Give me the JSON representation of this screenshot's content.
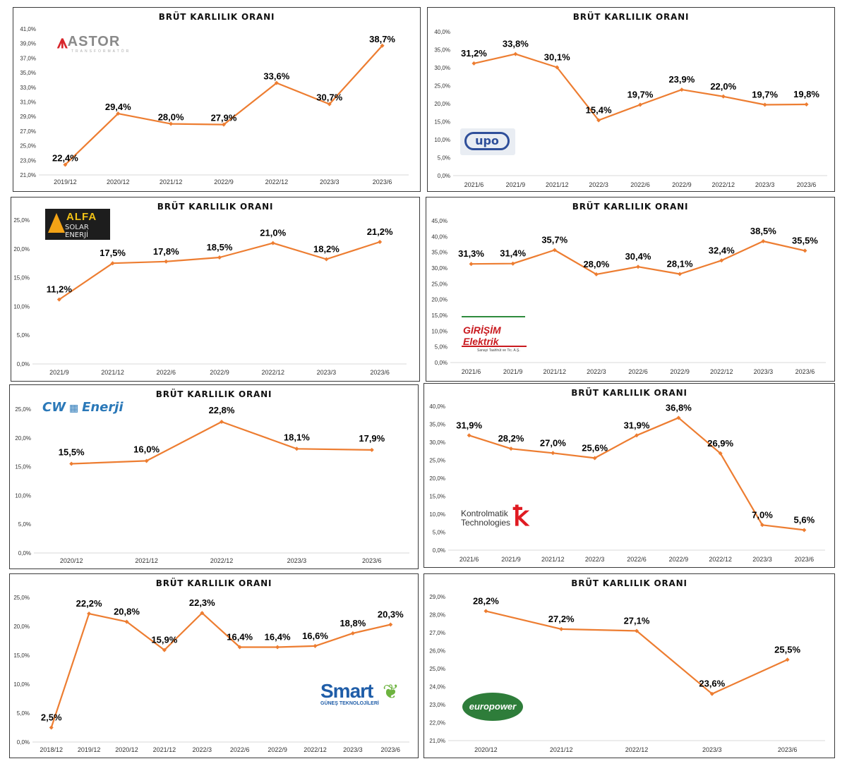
{
  "chart_data": [
    {
      "type": "line",
      "company": "ASTOR",
      "logo_text": "ASTOR",
      "logo_sub": "TRANSFORMATÖR",
      "title": "BRÜT KARLILIK ORANI",
      "categories": [
        "2019/12",
        "2020/12",
        "2021/12",
        "2022/9",
        "2022/12",
        "2023/3",
        "2023/6"
      ],
      "values": [
        22.4,
        29.4,
        28.0,
        27.9,
        33.6,
        30.7,
        38.7
      ],
      "labels": [
        "22,4%",
        "29,4%",
        "28,0%",
        "27,9%",
        "33,6%",
        "30,7%",
        "38,7%"
      ],
      "yticks": [
        "21,0%",
        "23,0%",
        "25,0%",
        "27,0%",
        "29,0%",
        "31,0%",
        "33,0%",
        "35,0%",
        "37,0%",
        "39,0%",
        "41,0%"
      ],
      "ylim": [
        21,
        41
      ],
      "line_color": "#ed7d31"
    },
    {
      "type": "line",
      "company": "UPO",
      "logo_text": "upo",
      "title": "BRÜT KARLILIK ORANI",
      "categories": [
        "2021/6",
        "2021/9",
        "2021/12",
        "2022/3",
        "2022/6",
        "2022/9",
        "2022/12",
        "2023/3",
        "2023/6"
      ],
      "values": [
        31.2,
        33.8,
        30.1,
        15.4,
        19.7,
        23.9,
        22.0,
        19.7,
        19.8
      ],
      "labels": [
        "31,2%",
        "33,8%",
        "30,1%",
        "15,4%",
        "19,7%",
        "23,9%",
        "22,0%",
        "19,7%",
        "19,8%"
      ],
      "yticks": [
        "0,0%",
        "5,0%",
        "10,0%",
        "15,0%",
        "20,0%",
        "25,0%",
        "30,0%",
        "35,0%",
        "40,0%"
      ],
      "ylim": [
        0,
        40
      ],
      "line_color": "#ed7d31"
    },
    {
      "type": "line",
      "company": "ALFA Solar Enerji",
      "logo_text": "ALFA",
      "logo_sub": "SOLAR ENERJİ",
      "title": "BRÜT KARLILIK ORANI",
      "categories": [
        "2021/9",
        "2021/12",
        "2022/6",
        "2022/9",
        "2022/12",
        "2023/3",
        "2023/6"
      ],
      "values": [
        11.2,
        17.5,
        17.8,
        18.5,
        21.0,
        18.2,
        21.2
      ],
      "labels": [
        "11,2%",
        "17,5%",
        "17,8%",
        "18,5%",
        "21,0%",
        "18,2%",
        "21,2%"
      ],
      "yticks": [
        "0,0%",
        "5,0%",
        "10,0%",
        "15,0%",
        "20,0%",
        "25,0%"
      ],
      "ylim": [
        0,
        25
      ],
      "line_color": "#ed7d31"
    },
    {
      "type": "line",
      "company": "Girişim Elektrik",
      "logo_text": "GİRİŞİM Elektrik",
      "logo_sub": "Sanayi Taahhüt ve Tic. A.Ş.",
      "title": "BRÜT KARLILIK ORANI",
      "categories": [
        "2021/6",
        "2021/9",
        "2021/12",
        "2022/3",
        "2022/6",
        "2022/9",
        "2022/12",
        "2023/3",
        "2023/6"
      ],
      "values": [
        31.3,
        31.4,
        35.7,
        28.0,
        30.4,
        28.1,
        32.4,
        38.5,
        35.5
      ],
      "labels": [
        "31,3%",
        "31,4%",
        "35,7%",
        "28,0%",
        "30,4%",
        "28,1%",
        "32,4%",
        "38,5%",
        "35,5%"
      ],
      "yticks": [
        "0,0%",
        "5,0%",
        "10,0%",
        "15,0%",
        "20,0%",
        "25,0%",
        "30,0%",
        "35,0%",
        "40,0%",
        "45,0%"
      ],
      "ylim": [
        0,
        45
      ],
      "line_color": "#ed7d31"
    },
    {
      "type": "line",
      "company": "CW Enerji",
      "logo_text": "CW",
      "logo_sub": "Enerji",
      "title": "BRÜT KARLILIK ORANI",
      "categories": [
        "2020/12",
        "2021/12",
        "2022/12",
        "2023/3",
        "2023/6"
      ],
      "values": [
        15.5,
        16.0,
        22.8,
        18.1,
        17.9
      ],
      "labels": [
        "15,5%",
        "16,0%",
        "22,8%",
        "18,1%",
        "17,9%"
      ],
      "yticks": [
        "0,0%",
        "5,0%",
        "10,0%",
        "15,0%",
        "20,0%",
        "25,0%"
      ],
      "ylim": [
        0,
        25
      ],
      "line_color": "#ed7d31"
    },
    {
      "type": "line",
      "company": "Kontrolmatik Technologies",
      "logo_text": "Kontrolmatik",
      "logo_sub": "Technologies",
      "title": "BRÜT KARLILIK ORANI",
      "categories": [
        "2021/6",
        "2021/9",
        "2021/12",
        "2022/3",
        "2022/6",
        "2022/9",
        "2022/12",
        "2023/3",
        "2023/6"
      ],
      "values": [
        31.9,
        28.2,
        27.0,
        25.6,
        31.9,
        36.8,
        26.9,
        7.0,
        5.6
      ],
      "labels": [
        "31,9%",
        "28,2%",
        "27,0%",
        "25,6%",
        "31,9%",
        "36,8%",
        "26,9%",
        "7,0%",
        "5,6%"
      ],
      "yticks": [
        "0,0%",
        "5,0%",
        "10,0%",
        "15,0%",
        "20,0%",
        "25,0%",
        "30,0%",
        "35,0%",
        "40,0%"
      ],
      "ylim": [
        0,
        40
      ],
      "line_color": "#ed7d31"
    },
    {
      "type": "line",
      "company": "Smart Güneş Teknolojileri",
      "logo_text": "Smart",
      "logo_sub": "GÜNEŞ TEKNOLOJİLERİ",
      "title": "BRÜT KARLILIK ORANI",
      "categories": [
        "2018/12",
        "2019/12",
        "2020/12",
        "2021/12",
        "2022/3",
        "2022/6",
        "2022/9",
        "2022/12",
        "2023/3",
        "2023/6"
      ],
      "values": [
        2.5,
        22.2,
        20.8,
        15.9,
        22.3,
        16.4,
        16.4,
        16.6,
        18.8,
        20.3
      ],
      "labels": [
        "2,5%",
        "22,2%",
        "20,8%",
        "15,9%",
        "22,3%",
        "16,4%",
        "16,4%",
        "16,6%",
        "18,8%",
        "20,3%"
      ],
      "yticks": [
        "0,0%",
        "5,0%",
        "10,0%",
        "15,0%",
        "20,0%",
        "25,0%"
      ],
      "ylim": [
        0,
        25
      ],
      "line_color": "#ed7d31"
    },
    {
      "type": "line",
      "company": "Europower Enerji",
      "logo_text": "europower",
      "title": "BRÜT KARLILIK ORANI",
      "categories": [
        "2020/12",
        "2021/12",
        "2022/12",
        "2023/3",
        "2023/6"
      ],
      "values": [
        28.2,
        27.2,
        27.1,
        23.6,
        25.5
      ],
      "labels": [
        "28,2%",
        "27,2%",
        "27,1%",
        "23,6%",
        "25,5%"
      ],
      "yticks": [
        "21,0%",
        "22,0%",
        "23,0%",
        "24,0%",
        "25,0%",
        "26,0%",
        "27,0%",
        "28,0%",
        "29,0%"
      ],
      "ylim": [
        21,
        29
      ],
      "line_color": "#ed7d31"
    }
  ]
}
